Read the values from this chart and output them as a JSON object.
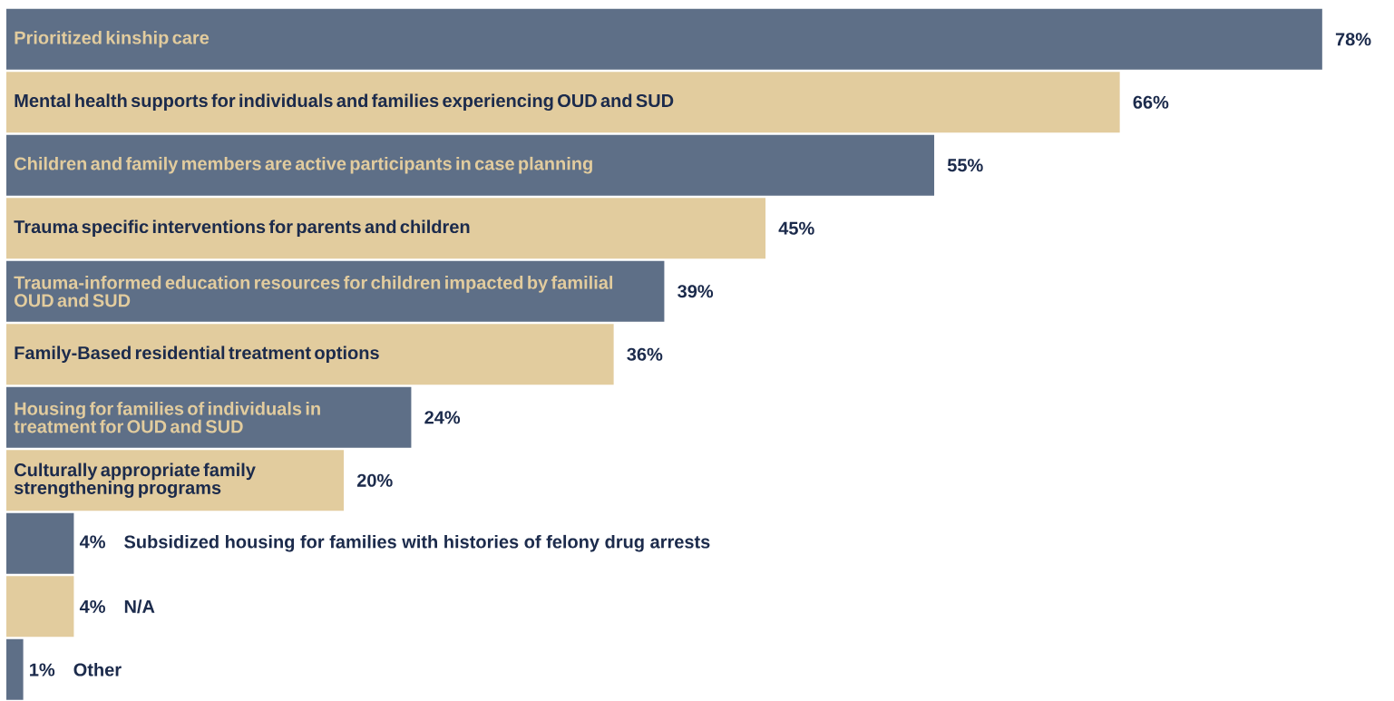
{
  "chart_data": {
    "type": "bar",
    "orientation": "horizontal",
    "categories": [
      "Prioritized kinship care",
      "Mental health supports for individuals and families experiencing OUD and SUD",
      "Children and family members are active participants in case planning",
      "Trauma specific interventions for parents and children",
      "Trauma-informed education resources for children impacted by familial OUD and SUD",
      "Family-Based residential treatment options",
      "Housing for families of individuals in treatment for OUD and SUD",
      "Culturally appropriate family strengthening programs",
      "Subsidized housing for families with histories of felony drug arrests",
      "N/A",
      "Other"
    ],
    "values": [
      78,
      66,
      55,
      45,
      39,
      36,
      24,
      20,
      4,
      4,
      1
    ],
    "value_labels": [
      "78%",
      "66%",
      "55%",
      "45%",
      "39%",
      "36%",
      "24%",
      "20%",
      "4%",
      "4%",
      "1%"
    ],
    "colors": [
      "#5e6f87",
      "#e2cc9e",
      "#5e6f87",
      "#e2cc9e",
      "#5e6f87",
      "#e2cc9e",
      "#5e6f87",
      "#e2cc9e",
      "#5e6f87",
      "#e2cc9e",
      "#5e6f87"
    ]
  }
}
